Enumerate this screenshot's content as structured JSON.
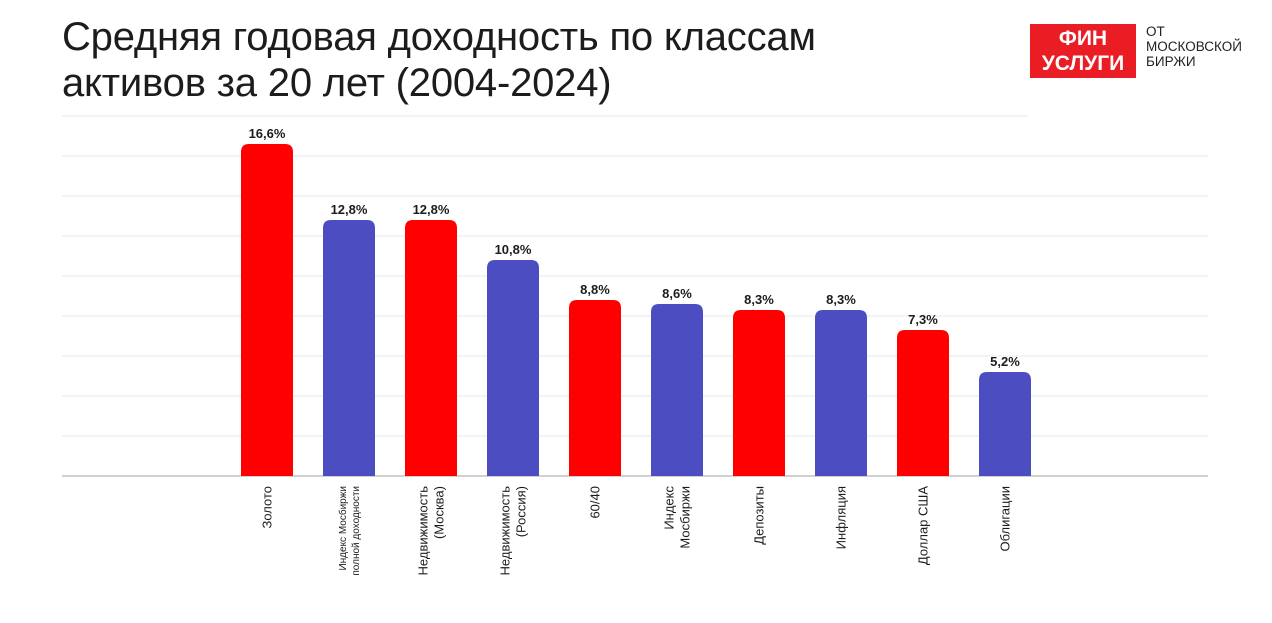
{
  "title": {
    "line1": "Средняя годовая доходность по классам",
    "line2": "активов за 20 лет (2004-2024)"
  },
  "logo": {
    "box_line1": "ФИН",
    "box_line2": "УСЛУГИ",
    "sub_line1": "ОТ",
    "sub_line2": "МОСКОВСКОЙ",
    "sub_line3": "БИРЖИ"
  },
  "colors": {
    "red": "#fe0000",
    "blue": "#4c4dc0",
    "grid": "#e8e8e8",
    "axis": "#d0d0d0"
  },
  "chart_data": {
    "type": "bar",
    "title": "Средняя годовая доходность по классам активов за 20 лет (2004-2024)",
    "ylim": [
      0,
      18
    ],
    "grid": true,
    "bars": [
      {
        "label_lines": [
          "Золото"
        ],
        "value": 16.6,
        "value_label": "16,6%",
        "color": "red"
      },
      {
        "label_lines": [
          "Индекс Мосбиржи",
          "полной доходности"
        ],
        "value": 12.8,
        "value_label": "12,8%",
        "color": "blue",
        "small": true
      },
      {
        "label_lines": [
          "Недвижимость",
          "(Москва)"
        ],
        "value": 12.8,
        "value_label": "12,8%",
        "color": "red"
      },
      {
        "label_lines": [
          "Недвижимость",
          "(Россия)"
        ],
        "value": 10.8,
        "value_label": "10,8%",
        "color": "blue"
      },
      {
        "label_lines": [
          "60/40"
        ],
        "value": 8.8,
        "value_label": "8,8%",
        "color": "red"
      },
      {
        "label_lines": [
          "Индекс",
          "Мосбиржи"
        ],
        "value": 8.6,
        "value_label": "8,6%",
        "color": "blue"
      },
      {
        "label_lines": [
          "Депозиты"
        ],
        "value": 8.3,
        "value_label": "8,3%",
        "color": "red"
      },
      {
        "label_lines": [
          "Инфляция"
        ],
        "value": 8.3,
        "value_label": "8,3%",
        "color": "blue"
      },
      {
        "label_lines": [
          "Доллар США"
        ],
        "value": 7.3,
        "value_label": "7,3%",
        "color": "red"
      },
      {
        "label_lines": [
          "Облигации"
        ],
        "value": 5.2,
        "value_label": "5,2%",
        "color": "blue"
      }
    ]
  }
}
